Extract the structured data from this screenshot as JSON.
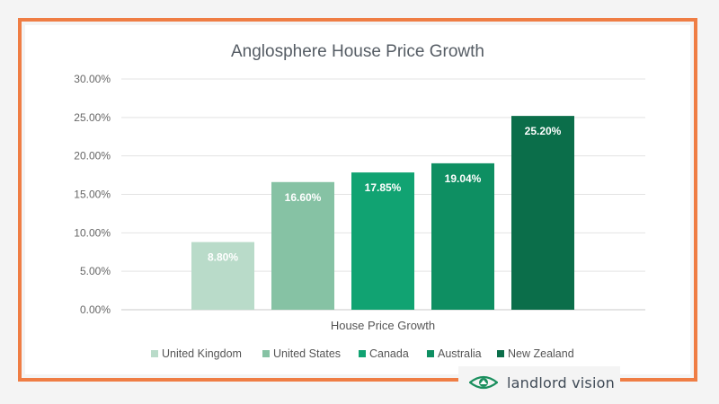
{
  "chart_data": {
    "type": "bar",
    "title": "Anglosphere House Price Growth",
    "xlabel": "House Price Growth",
    "ylabel": "",
    "ylim": [
      0,
      0.3
    ],
    "ytick_values": [
      0,
      0.05,
      0.1,
      0.15,
      0.2,
      0.25,
      0.3
    ],
    "ytick_labels": [
      "0.00%",
      "5.00%",
      "10.00%",
      "15.00%",
      "20.00%",
      "25.00%",
      "30.00%"
    ],
    "grid": true,
    "legend_position": "bottom",
    "series": [
      {
        "name": "United Kingdom",
        "value": 0.088,
        "label": "8.80%",
        "color": "#b9dbc9"
      },
      {
        "name": "United States",
        "value": 0.166,
        "label": "16.60%",
        "color": "#86c2a4"
      },
      {
        "name": "Canada",
        "value": 0.1785,
        "label": "17.85%",
        "color": "#11a372"
      },
      {
        "name": "Australia",
        "value": 0.1904,
        "label": "19.04%",
        "color": "#0e8f62"
      },
      {
        "name": "New Zealand",
        "value": 0.252,
        "label": "25.20%",
        "color": "#0b6e4a"
      }
    ]
  },
  "brand": {
    "name": "landlord vision",
    "icon": "eye-logo-icon",
    "color": "#1b8f5e"
  }
}
